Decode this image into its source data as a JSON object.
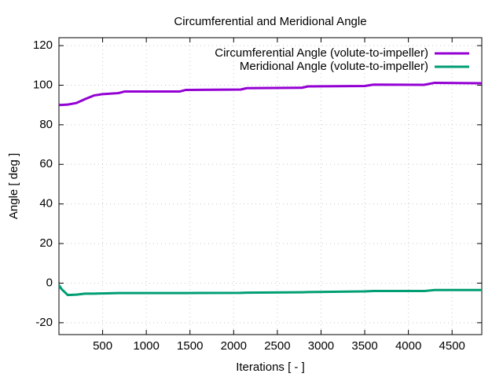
{
  "chart_data": {
    "type": "line",
    "title": "Circumferential and Meridional Angle",
    "x_label": "Iterations [ - ]",
    "y_label": "Angle [ deg ]",
    "x": [
      0,
      30,
      100,
      200,
      300,
      400,
      500,
      680,
      750,
      1380,
      1450,
      2080,
      2150,
      2780,
      2850,
      3500,
      3600,
      4180,
      4300,
      4840
    ],
    "series": [
      {
        "name": "Circumferential Angle (volute-to-impeller)",
        "color": "#9400d3",
        "values": [
          90,
          90,
          90.2,
          91,
          93,
          94.8,
          95.5,
          96,
          96.8,
          96.8,
          97.6,
          97.8,
          98.5,
          98.7,
          99.4,
          99.6,
          100.3,
          100.2,
          101.2,
          101
        ]
      },
      {
        "name": "Meridional Angle (volute-to-impeller)",
        "color": "#009e73",
        "values": [
          -1,
          -3,
          -6,
          -5.8,
          -5.3,
          -5.3,
          -5.2,
          -5,
          -5,
          -5,
          -5,
          -4.9,
          -4.8,
          -4.6,
          -4.5,
          -4.2,
          -4,
          -4,
          -3.5,
          -3.5
        ]
      }
    ],
    "xlim": [
      0,
      4840
    ],
    "xticks": [
      500,
      1000,
      1500,
      2000,
      2500,
      3000,
      3500,
      4000,
      4500
    ],
    "ylim": [
      -26,
      124
    ],
    "yticks": [
      -20,
      0,
      20,
      40,
      60,
      80,
      100,
      120
    ],
    "grid": true,
    "legend": "top-right"
  }
}
